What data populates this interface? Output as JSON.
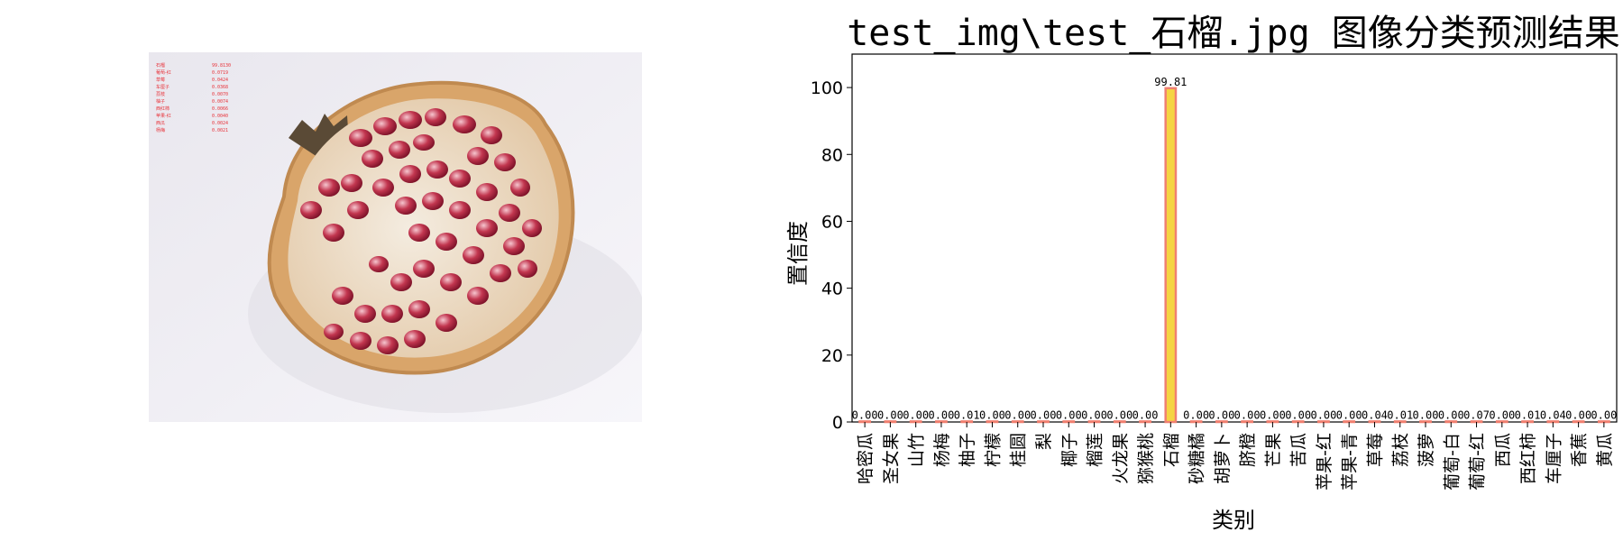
{
  "photo": {
    "overlay_lines": [
      {
        "label": "石榴",
        "value": "99.8130"
      },
      {
        "label": "葡萄-红",
        "value": "0.0719"
      },
      {
        "label": "草莓",
        "value": "0.0424"
      },
      {
        "label": "车厘子",
        "value": "0.0368"
      },
      {
        "label": "荔枝",
        "value": "0.0070"
      },
      {
        "label": "柚子",
        "value": "0.0074"
      },
      {
        "label": "西红柿",
        "value": "0.0066"
      },
      {
        "label": "苹果-红",
        "value": "0.0040"
      },
      {
        "label": "西瓜",
        "value": "0.0024"
      },
      {
        "label": "杨梅",
        "value": "0.0021"
      }
    ]
  },
  "chart_data": {
    "type": "bar",
    "title": "test_img\\test_石榴.jpg 图像分类预测结果",
    "xlabel": "类别",
    "ylabel": "置信度",
    "ylim": [
      0,
      110
    ],
    "yticks": [
      0,
      20,
      40,
      60,
      80,
      100
    ],
    "grid": false,
    "bar_fill": "#f5d442",
    "bar_edge": "#f08070",
    "categories": [
      "哈密瓜",
      "圣女果",
      "山竹",
      "杨梅",
      "柚子",
      "柠檬",
      "桂圆",
      "梨",
      "椰子",
      "榴莲",
      "火龙果",
      "猕猴桃",
      "石榴",
      "砂糖橘",
      "胡萝卜",
      "脐橙",
      "芒果",
      "苦瓜",
      "苹果-红",
      "苹果-青",
      "草莓",
      "荔枝",
      "菠萝",
      "葡萄-白",
      "葡萄-红",
      "西瓜",
      "西红柿",
      "车厘子",
      "香蕉",
      "黄瓜"
    ],
    "values": [
      0,
      0,
      0,
      0,
      0.01,
      0,
      0,
      0,
      0,
      0,
      0,
      0,
      99.81,
      0,
      0,
      0,
      0,
      0,
      0,
      0,
      0.04,
      0.01,
      0,
      0,
      0.07,
      0,
      0.01,
      0.04,
      0,
      0
    ],
    "data_labels": [
      "0.00",
      "0.00",
      "0.00",
      "0.00",
      "0.01",
      "0.00",
      "0.00",
      "0.00",
      "0.00",
      "0.00",
      "0.00",
      "0.00",
      "99.81",
      "0.00",
      "0.00",
      "0.00",
      "0.00",
      "0.00",
      "0.00",
      "0.00",
      "0.04",
      "0.01",
      "0.00",
      "0.00",
      "0.07",
      "0.00",
      "0.01",
      "0.04",
      "0.00",
      "0.00"
    ]
  }
}
